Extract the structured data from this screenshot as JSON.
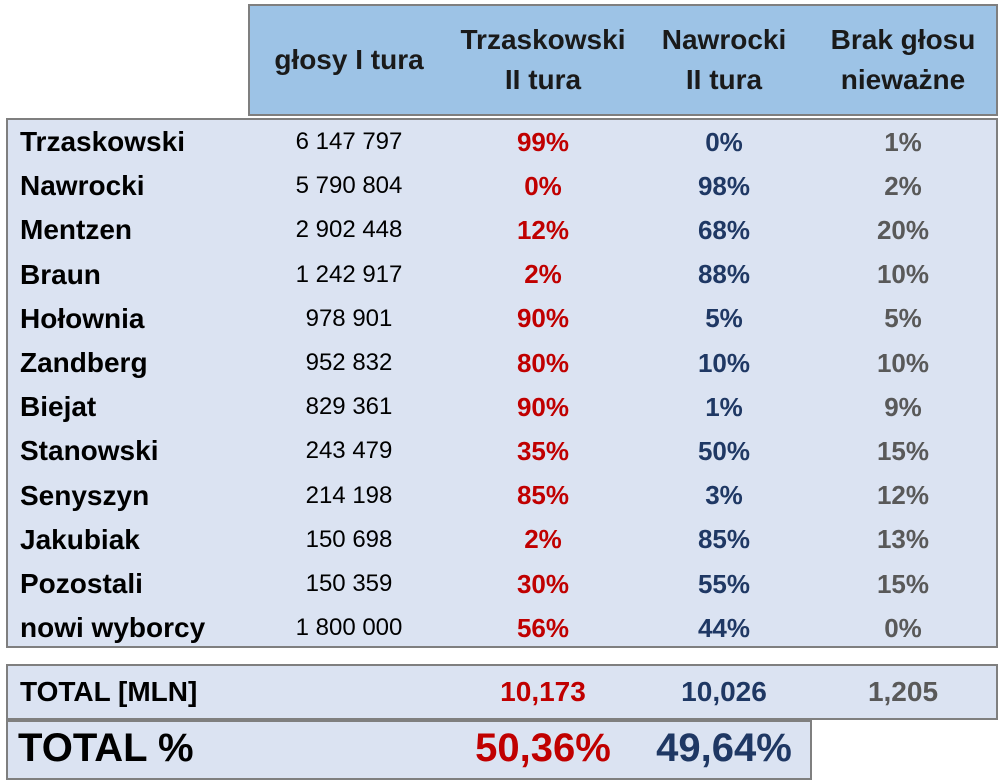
{
  "chart_data": {
    "type": "table",
    "columns": [
      "głosy I tura",
      "Trzaskowski II tura",
      "Nawrocki II tura",
      "Brak głosu nieważne"
    ],
    "header": {
      "col1": [
        "głosy I tura"
      ],
      "col2": [
        "Trzaskowski",
        "II tura"
      ],
      "col3": [
        "Nawrocki",
        "II tura"
      ],
      "col4": [
        "Brak głosu",
        "nieważne"
      ]
    },
    "rows": [
      {
        "name": "Trzaskowski",
        "votes": "6 147 797",
        "trzaskowski": "99%",
        "nawrocki": "0%",
        "brak": "1%"
      },
      {
        "name": "Nawrocki",
        "votes": "5 790 804",
        "trzaskowski": "0%",
        "nawrocki": "98%",
        "brak": "2%"
      },
      {
        "name": "Mentzen",
        "votes": "2 902 448",
        "trzaskowski": "12%",
        "nawrocki": "68%",
        "brak": "20%"
      },
      {
        "name": "Braun",
        "votes": "1 242 917",
        "trzaskowski": "2%",
        "nawrocki": "88%",
        "brak": "10%"
      },
      {
        "name": "Hołownia",
        "votes": "978 901",
        "trzaskowski": "90%",
        "nawrocki": "5%",
        "brak": "5%"
      },
      {
        "name": "Zandberg",
        "votes": "952 832",
        "trzaskowski": "80%",
        "nawrocki": "10%",
        "brak": "10%"
      },
      {
        "name": "Biejat",
        "votes": "829 361",
        "trzaskowski": "90%",
        "nawrocki": "1%",
        "brak": "9%"
      },
      {
        "name": "Stanowski",
        "votes": "243 479",
        "trzaskowski": "35%",
        "nawrocki": "50%",
        "brak": "15%"
      },
      {
        "name": "Senyszyn",
        "votes": "214 198",
        "trzaskowski": "85%",
        "nawrocki": "3%",
        "brak": "12%"
      },
      {
        "name": "Jakubiak",
        "votes": "150 698",
        "trzaskowski": "2%",
        "nawrocki": "85%",
        "brak": "13%"
      },
      {
        "name": "Pozostali",
        "votes": "150 359",
        "trzaskowski": "30%",
        "nawrocki": "55%",
        "brak": "15%"
      },
      {
        "name": "nowi wyborcy",
        "votes": "1 800 000",
        "trzaskowski": "56%",
        "nawrocki": "44%",
        "brak": "0%"
      }
    ],
    "total_mln": {
      "label": "TOTAL [MLN]",
      "trzaskowski": "10,173",
      "nawrocki": "10,026",
      "brak": "1,205"
    },
    "total_pct": {
      "label": "TOTAL %",
      "trzaskowski": "50,36%",
      "nawrocki": "49,64%"
    }
  },
  "colors": {
    "header_bg": "#9dc3e6",
    "body_bg": "#dbe3f2",
    "trzaskowski": "#c00000",
    "nawrocki": "#1f3864",
    "brak": "#595959"
  }
}
